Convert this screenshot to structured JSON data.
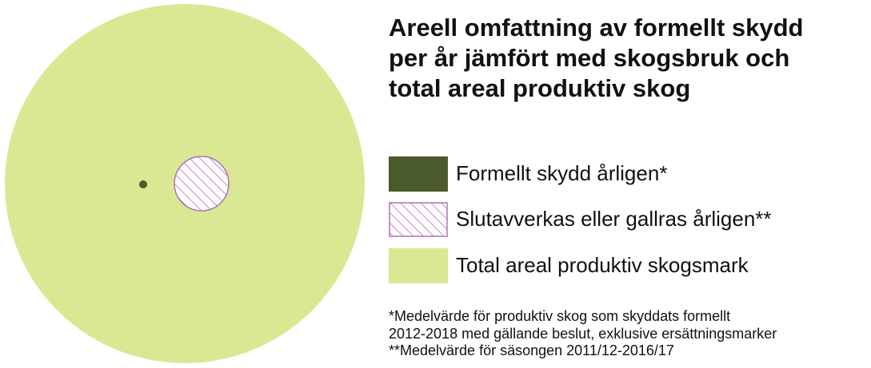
{
  "chart_data": {
    "type": "proportional-area",
    "title_lines": [
      "Areell omfattning av formellt skydd",
      "per år jämfört med skogsbruk och",
      "total areal produktiv skog"
    ],
    "series": [
      {
        "name": "Formellt skydd årligen*",
        "color": "#4b5a2a",
        "pattern": "solid",
        "relative_area": 0.0003
      },
      {
        "name": "Slutavverkas eller gallras årligen**",
        "color": "#b070b8",
        "pattern": "hatched",
        "relative_area": 0.022
      },
      {
        "name": "Total areal produktiv skogsmark",
        "color": "#dae893",
        "pattern": "solid",
        "relative_area": 1.0
      }
    ],
    "footnotes": [
      "*Medelvärde för produktiv skog som skyddats formellt",
      "2012-2018 med gällande beslut, exklusive ersättningsmarker",
      "**Medelvärde för säsongen 2011/12-2016/17"
    ]
  },
  "colors": {
    "total_fill": "#dae893",
    "protected_fill": "#4b5a2a",
    "harvest_stroke": "#b070b8",
    "harvest_fill": "#ffffff",
    "text": "#111111"
  }
}
